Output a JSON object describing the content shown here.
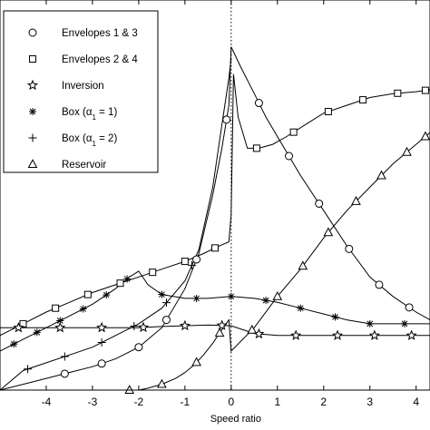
{
  "chart_data": {
    "type": "line",
    "title": "",
    "xlabel": "Speed ratio",
    "ylabel": "",
    "xlim": [
      -5,
      4.3
    ],
    "ylim": [
      0,
      1
    ],
    "xticks": [
      -4,
      -3,
      -2,
      -1,
      0,
      1,
      2,
      3,
      4
    ],
    "xtick_labels": [
      "-4",
      "-3",
      "-2",
      "-1",
      "0",
      "1",
      "2",
      "3",
      "4"
    ],
    "vertical_reference_line_x": 0,
    "legend_position": "top-left",
    "grid": false,
    "series": [
      {
        "name": "Envelopes 1 & 3",
        "marker": "circle",
        "x": [
          -5,
          -4.5,
          -4,
          -3.5,
          -3,
          -2.5,
          -2,
          -1.5,
          -1,
          -0.7,
          -0.4,
          -0.2,
          -0.05,
          0.0,
          0.2,
          0.5,
          0.75,
          1.0,
          1.25,
          1.5,
          2.0,
          2.5,
          3.0,
          3.5,
          4.0,
          4.3
        ],
        "y": [
          0.0,
          0.015,
          0.03,
          0.045,
          0.06,
          0.08,
          0.11,
          0.16,
          0.26,
          0.35,
          0.5,
          0.62,
          0.73,
          0.88,
          0.83,
          0.76,
          0.7,
          0.65,
          0.6,
          0.55,
          0.46,
          0.37,
          0.29,
          0.24,
          0.2,
          0.18
        ],
        "marker_x": [
          -3.6,
          -2.8,
          -2.0,
          -1.4,
          -0.75,
          -0.1,
          0.6,
          1.25,
          1.9,
          2.55,
          3.2,
          3.85
        ]
      },
      {
        "name": "Envelopes 2 & 4",
        "marker": "square",
        "x": [
          -5,
          -4.5,
          -4,
          -3.5,
          -3,
          -2.5,
          -2,
          -1.5,
          -1,
          -0.6,
          -0.25,
          -0.05,
          0.0,
          0.05,
          0.15,
          0.35,
          0.6,
          0.9,
          1.2,
          1.6,
          2.0,
          2.5,
          3.0,
          3.5,
          4.0,
          4.3
        ],
        "y": [
          0.14,
          0.17,
          0.2,
          0.225,
          0.25,
          0.27,
          0.29,
          0.31,
          0.33,
          0.35,
          0.37,
          0.38,
          0.45,
          0.81,
          0.7,
          0.62,
          0.62,
          0.63,
          0.65,
          0.68,
          0.71,
          0.73,
          0.75,
          0.76,
          0.765,
          0.77
        ],
        "marker_x": [
          -4.5,
          -3.8,
          -3.1,
          -2.4,
          -1.7,
          -1.0,
          -0.35,
          0.55,
          1.35,
          2.1,
          2.85,
          3.6,
          4.2
        ]
      },
      {
        "name": "Inversion",
        "marker": "star",
        "x": [
          -5,
          -4.5,
          -4,
          -3.5,
          -3,
          -2.5,
          -2,
          -1.5,
          -1,
          -0.5,
          0.0,
          0.5,
          1.0,
          1.5,
          2.0,
          2.5,
          3.0,
          3.5,
          4.0,
          4.3
        ],
        "y": [
          0.16,
          0.16,
          0.16,
          0.16,
          0.16,
          0.16,
          0.16,
          0.163,
          0.165,
          0.167,
          0.165,
          0.145,
          0.14,
          0.14,
          0.14,
          0.14,
          0.14,
          0.14,
          0.14,
          0.14
        ],
        "marker_x": [
          -4.6,
          -3.7,
          -2.8,
          -1.9,
          -1.0,
          -0.2,
          0.6,
          1.4,
          2.3,
          3.1,
          3.9
        ]
      },
      {
        "name": "Box (α1 = 1)",
        "marker": "asterisk",
        "x": [
          -5,
          -4.5,
          -4,
          -3.5,
          -3,
          -2.5,
          -2.2,
          -2.0,
          -1.8,
          -1.5,
          -1.0,
          -0.5,
          0.0,
          0.5,
          1.0,
          1.5,
          2.0,
          2.5,
          3.0,
          3.5,
          4.0,
          4.3
        ],
        "y": [
          0.1,
          0.13,
          0.16,
          0.19,
          0.22,
          0.26,
          0.29,
          0.305,
          0.27,
          0.245,
          0.235,
          0.235,
          0.24,
          0.235,
          0.225,
          0.21,
          0.195,
          0.18,
          0.17,
          0.17,
          0.17,
          0.17
        ],
        "marker_x": [
          -4.7,
          -4.2,
          -3.7,
          -3.2,
          -2.7,
          -2.25,
          -1.5,
          -0.75,
          0.0,
          0.75,
          1.5,
          2.25,
          3.0,
          3.75
        ]
      },
      {
        "name": "Box (α1 = 2)",
        "marker": "plus",
        "x": [
          -5,
          -4.5,
          -4,
          -3.5,
          -3,
          -2.5,
          -2,
          -1.5,
          -1,
          -0.7,
          -0.4,
          -0.2,
          -0.05,
          0.0
        ],
        "y": [
          0.0,
          0.05,
          0.07,
          0.09,
          0.11,
          0.14,
          0.17,
          0.21,
          0.28,
          0.36,
          0.52,
          0.68,
          0.8,
          0.85
        ],
        "marker_x": [
          -4.4,
          -3.6,
          -2.8,
          -2.1,
          -1.4,
          -0.85
        ]
      },
      {
        "name": "Reservoir",
        "marker": "triangle",
        "x": [
          -2.2,
          -2.0,
          -1.8,
          -1.5,
          -1.2,
          -1.0,
          -0.8,
          -0.6,
          -0.4,
          -0.2,
          -0.05,
          0.0,
          0.5,
          1.0,
          1.5,
          2.0,
          2.5,
          3.0,
          3.5,
          4.0,
          4.3
        ],
        "y": [
          0.0,
          0.0,
          0.005,
          0.015,
          0.03,
          0.045,
          0.065,
          0.09,
          0.12,
          0.155,
          0.18,
          0.1,
          0.16,
          0.24,
          0.31,
          0.39,
          0.46,
          0.52,
          0.58,
          0.63,
          0.66
        ],
        "marker_x": [
          -2.2,
          -1.5,
          -0.75,
          -0.25,
          0.45,
          1.0,
          1.55,
          2.1,
          2.7,
          3.25,
          3.8,
          4.2
        ]
      }
    ]
  }
}
